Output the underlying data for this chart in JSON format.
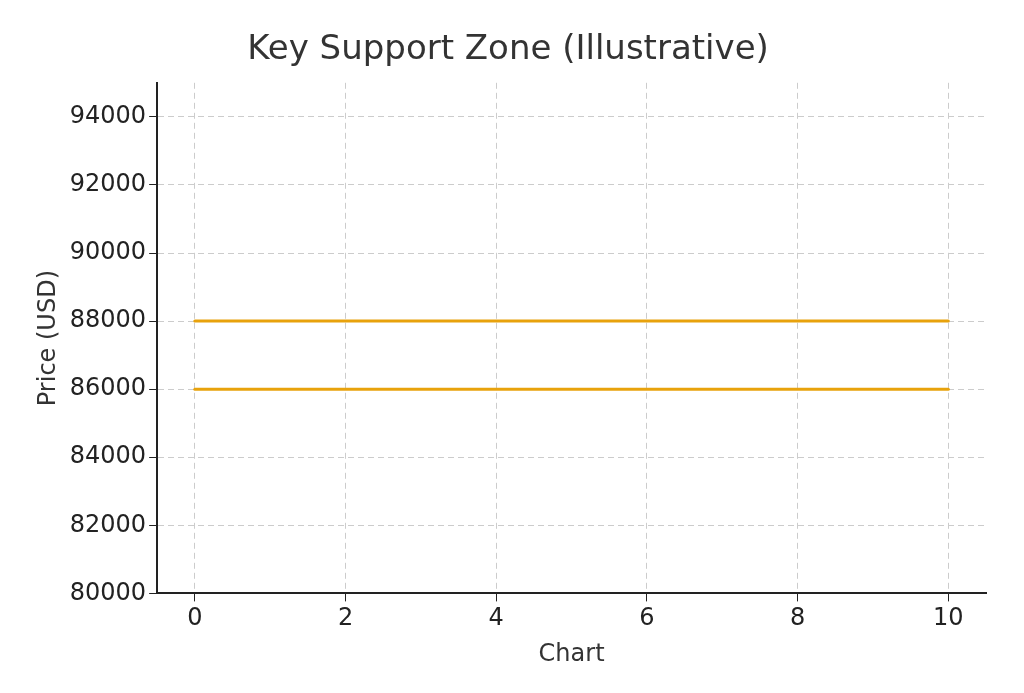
{
  "chart_data": {
    "type": "line",
    "title": "Key Support Zone (Illustrative)",
    "xlabel": "Chart",
    "ylabel": "Price (USD)",
    "x": [
      0,
      10
    ],
    "series": [
      {
        "color": "#e8a20c",
        "values": [
          88000,
          88000
        ]
      },
      {
        "color": "#e8a20c",
        "values": [
          86000,
          86000
        ]
      }
    ],
    "xlim": [
      -0.5,
      10.5
    ],
    "ylim": [
      80000,
      95000
    ],
    "xticks": [
      0,
      2,
      4,
      6,
      8,
      10
    ],
    "yticks": [
      80000,
      82000,
      84000,
      86000,
      88000,
      90000,
      92000,
      94000
    ],
    "grid": true,
    "marker": "none",
    "line_style": "solid"
  }
}
